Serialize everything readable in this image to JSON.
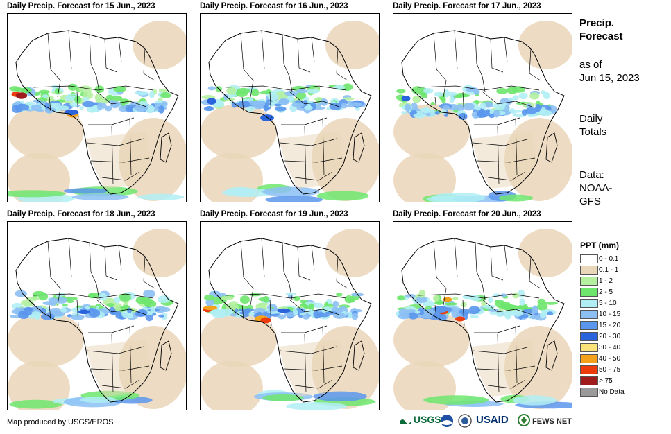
{
  "panels": [
    {
      "title": "Daily Precip. Forecast for 15 Jun., 2023",
      "variant": 0
    },
    {
      "title": "Daily Precip. Forecast for 16 Jun., 2023",
      "variant": 1
    },
    {
      "title": "Daily Precip. Forecast for 17 Jun., 2023",
      "variant": 2
    },
    {
      "title": "Daily Precip. Forecast for 18 Jun., 2023",
      "variant": 3
    },
    {
      "title": "Daily Precip. Forecast for 19 Jun., 2023",
      "variant": 4
    },
    {
      "title": "Daily Precip. Forecast for 20 Jun., 2023",
      "variant": 5
    }
  ],
  "sidebar": {
    "title_line1": "Precip.",
    "title_line2": "Forecast",
    "asof_line1": "as of",
    "asof_line2": "Jun 15, 2023",
    "daily_line1": "Daily",
    "daily_line2": "Totals",
    "data_line1": "Data:",
    "data_line2": "NOAA-",
    "data_line3": "GFS"
  },
  "legend": {
    "title": "PPT (mm)",
    "items": [
      {
        "label": "0 - 0.1",
        "color": "#ffffff"
      },
      {
        "label": "0.1 - 1",
        "color": "#ead6b8"
      },
      {
        "label": "1 - 2",
        "color": "#b4f0a0"
      },
      {
        "label": "2 - 5",
        "color": "#6ee66e"
      },
      {
        "label": "5 - 10",
        "color": "#b0eef4"
      },
      {
        "label": "10 - 15",
        "color": "#8cc0f4"
      },
      {
        "label": "15 - 20",
        "color": "#5a96ec"
      },
      {
        "label": "20 - 30",
        "color": "#2a64dc"
      },
      {
        "label": "30 - 40",
        "color": "#fce27a"
      },
      {
        "label": "40 - 50",
        "color": "#f4a21c"
      },
      {
        "label": "50 - 75",
        "color": "#ec3c0c"
      },
      {
        "label": "> 75",
        "color": "#a01c1c"
      },
      {
        "label": "No Data",
        "color": "#9a9a9a"
      }
    ]
  },
  "footer": {
    "credit": "Map produced by USGS/EROS",
    "logo_usgs": "USGS",
    "logo_usaid": "USAID",
    "logo_fews": "FEWS NET"
  }
}
